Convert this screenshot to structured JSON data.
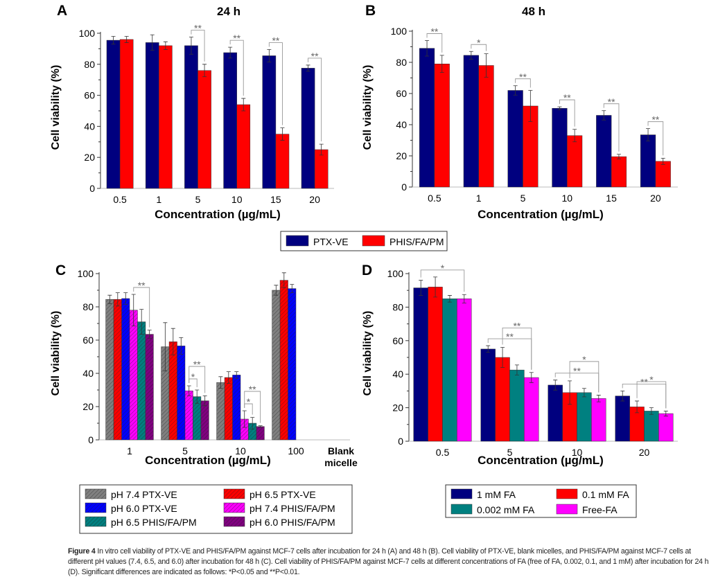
{
  "chart_data": [
    {
      "panel": "A",
      "title": "24 h",
      "type": "bar",
      "xlabel": "Concentration (µg/mL)",
      "ylabel": "Cell viability (%)",
      "ylim": [
        0,
        100
      ],
      "yticks": [
        0,
        20,
        40,
        60,
        80,
        100
      ],
      "categories": [
        "0.5",
        "1",
        "5",
        "10",
        "15",
        "20"
      ],
      "series": [
        {
          "name": "PTX-VE",
          "color": "#00007f",
          "values": [
            95.5,
            94,
            92,
            87.5,
            85.5,
            77.5
          ],
          "errors": [
            2.5,
            5,
            5.5,
            3.5,
            4,
            2
          ]
        },
        {
          "name": "PHIS/FA/PM",
          "color": "#ff0000",
          "values": [
            96,
            92,
            76,
            54,
            35,
            25
          ],
          "errors": [
            2,
            2.5,
            4,
            4,
            4,
            3.5
          ]
        }
      ],
      "significance": [
        {
          "category": 2,
          "from": 0,
          "to": 1,
          "label": "**"
        },
        {
          "category": 3,
          "from": 0,
          "to": 1,
          "label": "**"
        },
        {
          "category": 4,
          "from": 0,
          "to": 1,
          "label": "**"
        },
        {
          "category": 5,
          "from": 0,
          "to": 1,
          "label": "**"
        }
      ]
    },
    {
      "panel": "B",
      "title": "48 h",
      "type": "bar",
      "xlabel": "Concentration (µg/mL)",
      "ylabel": "Cell viability (%)",
      "ylim": [
        0,
        100
      ],
      "yticks": [
        0,
        20,
        40,
        60,
        80,
        100
      ],
      "categories": [
        "0.5",
        "1",
        "5",
        "10",
        "15",
        "20"
      ],
      "series": [
        {
          "name": "PTX-VE",
          "color": "#00007f",
          "values": [
            89,
            84.5,
            62,
            50.5,
            46,
            33.5
          ],
          "errors": [
            5,
            2.5,
            3,
            1,
            3,
            4
          ]
        },
        {
          "name": "PHIS/FA/PM",
          "color": "#ff0000",
          "values": [
            79,
            78,
            52,
            33,
            19.5,
            16.5
          ],
          "errors": [
            5.5,
            7.5,
            10,
            4,
            1.5,
            2
          ]
        }
      ],
      "significance": [
        {
          "category": 0,
          "from": 0,
          "to": 1,
          "label": "**"
        },
        {
          "category": 1,
          "from": 0,
          "to": 1,
          "label": "*"
        },
        {
          "category": 2,
          "from": 0,
          "to": 1,
          "label": "**"
        },
        {
          "category": 3,
          "from": 0,
          "to": 1,
          "label": "**"
        },
        {
          "category": 4,
          "from": 0,
          "to": 1,
          "label": "**"
        },
        {
          "category": 5,
          "from": 0,
          "to": 1,
          "label": "**"
        }
      ]
    },
    {
      "panel": "C",
      "title": "",
      "type": "bar",
      "xlabel": "Concentration (µg/mL)",
      "ylabel": "Cell viability (%)",
      "ylim": [
        0,
        100
      ],
      "yticks": [
        0,
        20,
        40,
        60,
        80,
        100
      ],
      "categories": [
        "1",
        "5",
        "10",
        "100"
      ],
      "extra_category_label": [
        "Blank",
        "micelle"
      ],
      "series": [
        {
          "name": "pH 7.4 PTX-VE",
          "color": "#808080",
          "hatch": true,
          "values": [
            84.5,
            56,
            34.5,
            90
          ],
          "errors": [
            2.5,
            14.5,
            3.5,
            3
          ]
        },
        {
          "name": "pH 6.5 PTX-VE",
          "color": "#ff0000",
          "hatch": true,
          "values": [
            84.5,
            59,
            37.5,
            96
          ],
          "errors": [
            4,
            8,
            3.5,
            4.5
          ]
        },
        {
          "name": "pH 6.0 PTX-VE",
          "color": "#0000ff",
          "hatch": true,
          "values": [
            85,
            56.5,
            39,
            91
          ],
          "errors": [
            3.5,
            5,
            2,
            2.5
          ]
        },
        {
          "name": "pH 7.4 PHIS/FA/PM",
          "color": "#ff00ff",
          "hatch": true,
          "values": [
            78,
            29.5,
            12.5,
            null
          ],
          "errors": [
            9.5,
            3,
            5,
            0
          ]
        },
        {
          "name": "pH 6.5 PHIS/FA/PM",
          "color": "#008080",
          "hatch": true,
          "values": [
            71,
            26,
            10,
            null
          ],
          "errors": [
            7.5,
            4,
            3.5,
            0
          ]
        },
        {
          "name": "pH 6.0 PHIS/FA/PM",
          "color": "#800080",
          "hatch": true,
          "values": [
            63.5,
            23.5,
            8,
            null
          ],
          "errors": [
            2.5,
            3,
            0.5,
            0
          ]
        }
      ],
      "significance": [
        {
          "category": 0,
          "from": 3,
          "to": 5,
          "label": "**"
        },
        {
          "category": 1,
          "from": 3,
          "to": 4,
          "label": "*"
        },
        {
          "category": 1,
          "from": 3,
          "to": 5,
          "label": "**"
        },
        {
          "category": 2,
          "from": 3,
          "to": 4,
          "label": "*"
        },
        {
          "category": 2,
          "from": 3,
          "to": 5,
          "label": "**"
        }
      ]
    },
    {
      "panel": "D",
      "title": "",
      "type": "bar",
      "xlabel": "Concentration (µg/mL)",
      "ylabel": "Cell viability (%)",
      "ylim": [
        0,
        100
      ],
      "yticks": [
        0,
        20,
        40,
        60,
        80,
        100
      ],
      "categories": [
        "0.5",
        "5",
        "10",
        "20"
      ],
      "series": [
        {
          "name": "1 mM FA",
          "color": "#00007f",
          "values": [
            91.5,
            55,
            33.5,
            27
          ],
          "errors": [
            4.5,
            2,
            3,
            3
          ]
        },
        {
          "name": "0.1 mM FA",
          "color": "#ff0000",
          "values": [
            92,
            50,
            29,
            20.5
          ],
          "errors": [
            6,
            6,
            7,
            3.5
          ]
        },
        {
          "name": "0.002 mM FA",
          "color": "#008080",
          "values": [
            85,
            42.5,
            29,
            18
          ],
          "errors": [
            2,
            3,
            2.5,
            2
          ]
        },
        {
          "name": "Free-FA",
          "color": "#ff00ff",
          "values": [
            85,
            38,
            25.5,
            16.5
          ],
          "errors": [
            2.5,
            3,
            2,
            1.5
          ]
        }
      ],
      "significance": [
        {
          "category": 0,
          "from": 0,
          "to": 3,
          "label": "*"
        },
        {
          "category": 1,
          "from": 0,
          "to": 3,
          "label": "**"
        },
        {
          "category": 1,
          "from": 1,
          "to": 3,
          "label": "**"
        },
        {
          "category": 2,
          "from": 0,
          "to": 3,
          "label": "**"
        },
        {
          "category": 2,
          "from": 1,
          "to": 3,
          "label": "*"
        },
        {
          "category": 3,
          "from": 0,
          "to": 3,
          "label": "**"
        },
        {
          "category": 3,
          "from": 1,
          "to": 3,
          "label": "*"
        }
      ]
    }
  ],
  "caption": {
    "label": "Figure 4",
    "text": "In vitro cell viability of PTX-VE and PHIS/FA/PM against MCF-7 cells after incubation for 24 h (A) and 48 h (B). Cell viability of PTX-VE, blank micelles, and PHIS/FA/PM against MCF-7 cells at different pH values (7.4, 6.5, and 6.0) after incubation for 48 h (C). Cell viability of PHIS/FA/PM against MCF-7 cells at different concentrations of FA (free of FA, 0.002, 0.1, and 1 mM) after incubation for 24 h (D). Significant differences are indicated as follows: *P<0.05 and **P<0.01."
  }
}
